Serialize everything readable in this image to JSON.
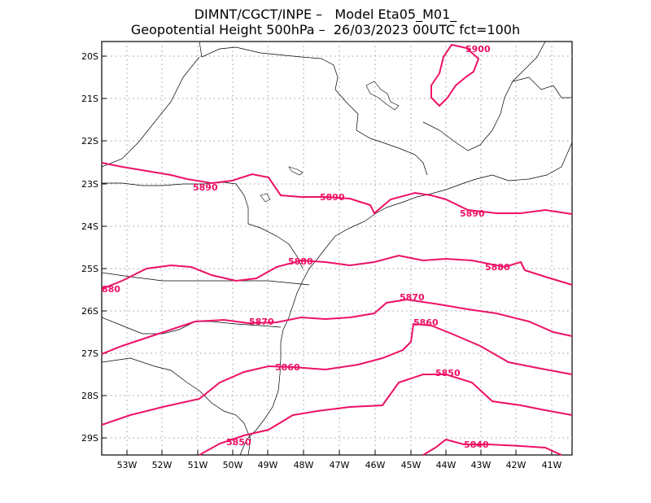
{
  "header": {
    "line1": "DIMNT/CGCT/INPE –   Model Eta05_M01_",
    "line2": "Geopotential Height 500hPa –  26/03/2023 00UTC fct=100h"
  },
  "axes": {
    "lat_labels": [
      "20S",
      "21S",
      "22S",
      "23S",
      "24S",
      "25S",
      "26S",
      "27S",
      "28S",
      "29S"
    ],
    "lon_labels": [
      "53W",
      "52W",
      "51W",
      "50W",
      "49W",
      "48W",
      "47W",
      "46W",
      "45W",
      "44W",
      "43W",
      "42W",
      "41W"
    ]
  },
  "contours": {
    "label_5900": "5900",
    "label_5890_a": "5890",
    "label_5890_b": "5890",
    "label_5890_c": "5890",
    "label_5880_a": "5880",
    "label_5880_b": "5880",
    "label_5880_c": "880",
    "label_5870_a": "5870",
    "label_5870_b": "5870",
    "label_5860_a": "5860",
    "label_5860_b": "5860",
    "label_5850_a": "5850",
    "label_5850_b": "5850",
    "label_5840": "5840"
  },
  "colors": {
    "contour": "#ee1166",
    "coast": "#000000",
    "grid": "#999999"
  }
}
